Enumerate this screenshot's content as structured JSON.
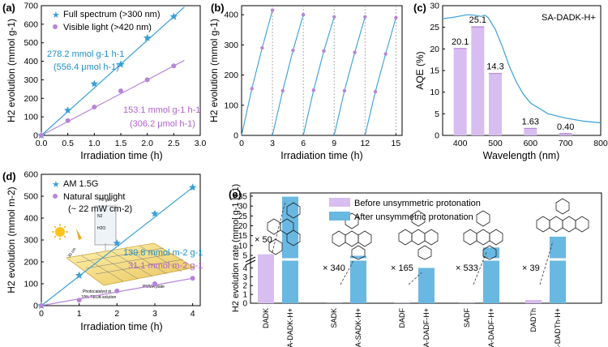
{
  "colors": {
    "blue": "#3a9fd6",
    "purple": "#b784d8",
    "lilac": "#d8bdf0",
    "barblue": "#69b8e2",
    "tick": "#000000"
  },
  "panels": {
    "a": {
      "label": "(a)"
    },
    "b": {
      "label": "(b)"
    },
    "c": {
      "label": "(c)"
    },
    "d": {
      "label": "(d)"
    },
    "e": {
      "label": "(e)"
    }
  },
  "chart_data": [
    {
      "panel": "a",
      "type": "scatter",
      "xlabel": "Irradiation time (h)",
      "ylabel": "H2 evolution (mmol g-1)",
      "xlim": [
        0,
        3.0
      ],
      "ylim": [
        0,
        700
      ],
      "xticks": [
        "0.0",
        "0.5",
        "1.0",
        "1.5",
        "2.0",
        "2.5",
        "3.0"
      ],
      "yticks": [
        "0",
        "100",
        "200",
        "300",
        "400",
        "500",
        "600",
        "700"
      ],
      "legend": "top-left",
      "series": [
        {
          "name": "Full spectrum (>300 nm)",
          "marker": "star",
          "x": [
            0,
            0.5,
            1.0,
            1.5,
            2.0,
            2.5
          ],
          "y": [
            0,
            135,
            278,
            383,
            526,
            641
          ]
        },
        {
          "name": "Visible light (>420 nm)",
          "marker": "circle",
          "x": [
            0,
            0.5,
            1.0,
            1.5,
            2.0,
            2.5
          ],
          "y": [
            0,
            80,
            153,
            240,
            300,
            375
          ]
        }
      ],
      "annotations": [
        {
          "text": "278.2 mmol g-1 h-1",
          "sub": "(556.4 μmol h-1)",
          "series": 0
        },
        {
          "text": "153.1 mmol g-1 h-1",
          "sub": "(306.2 μmol h-1)",
          "series": 1
        }
      ]
    },
    {
      "panel": "b",
      "type": "line",
      "xlabel": "Irradiation time (h)",
      "ylabel": "H2 evolution (mmol g-1)",
      "xlim": [
        0,
        15.6
      ],
      "ylim": [
        0,
        430
      ],
      "xticks": [
        "0",
        "3",
        "6",
        "9",
        "12",
        "15"
      ],
      "yticks": [
        "0",
        "100",
        "200",
        "300",
        "400"
      ],
      "cycles": [
        {
          "x": [
            0,
            1,
            2,
            3
          ],
          "y": [
            0,
            155,
            290,
            415
          ]
        },
        {
          "x": [
            3,
            4,
            5,
            6
          ],
          "y": [
            0,
            148,
            282,
            400
          ]
        },
        {
          "x": [
            6,
            7,
            8,
            9
          ],
          "y": [
            0,
            150,
            280,
            393
          ]
        },
        {
          "x": [
            9,
            10,
            11,
            12
          ],
          "y": [
            0,
            148,
            275,
            393
          ]
        },
        {
          "x": [
            12,
            13,
            14,
            15
          ],
          "y": [
            0,
            145,
            270,
            390
          ]
        }
      ]
    },
    {
      "panel": "c",
      "type": "bar",
      "xlabel": "Wavelength (nm)",
      "ylabel": "AQE (%)",
      "xlim": [
        350,
        800
      ],
      "ylim": [
        0,
        30
      ],
      "xticks": [
        "400",
        "500",
        "600",
        "700",
        "800"
      ],
      "yticks": [
        "0",
        "5",
        "10",
        "15",
        "20",
        "25",
        "30"
      ],
      "sample": "SA-DADK-H+",
      "bars": [
        {
          "x": 400,
          "value": 20.1,
          "label": "20.1"
        },
        {
          "x": 450,
          "value": 25.1,
          "label": "25.1"
        },
        {
          "x": 500,
          "value": 14.3,
          "label": "14.3"
        },
        {
          "x": 600,
          "value": 1.63,
          "label": "1.63"
        },
        {
          "x": 700,
          "value": 0.4,
          "label": "0.40"
        }
      ],
      "absorption_x": [
        350,
        380,
        400,
        420,
        440,
        460,
        470,
        480,
        500,
        520,
        540,
        560,
        580,
        600,
        650,
        700,
        750,
        800
      ],
      "absorption_y": [
        27.0,
        27.3,
        27.6,
        27.9,
        27.8,
        27.5,
        27.8,
        27.2,
        24.5,
        20.5,
        16.0,
        12.3,
        9.5,
        7.5,
        5.0,
        4.0,
        3.3,
        2.9
      ]
    },
    {
      "panel": "d",
      "type": "scatter",
      "xlabel": "Irradiation time (h)",
      "ylabel": "H2 evolution (mmol m-2)",
      "xlim": [
        0,
        4.2
      ],
      "ylim": [
        0,
        600
      ],
      "xticks": [
        "0",
        "1",
        "2",
        "3",
        "4"
      ],
      "yticks": [
        "0",
        "100",
        "200",
        "300",
        "400",
        "500",
        "600"
      ],
      "legend": "top-left",
      "series": [
        {
          "name": "AM 1.5G",
          "marker": "star",
          "x": [
            0,
            1,
            2,
            3,
            4
          ],
          "y": [
            0,
            138,
            285,
            420,
            540
          ]
        },
        {
          "name": "Natural sunlight",
          "sub": "(~ 22 mW cm-2)",
          "marker": "circle",
          "x": [
            0,
            1,
            2,
            3,
            4
          ],
          "y": [
            0,
            25,
            67,
            100,
            125
          ]
        }
      ],
      "annotations": [
        {
          "text": "139.8 mmol m-2 g-1",
          "series": 0
        },
        {
          "text": "31.1 mmol m-2 g-1",
          "series": 1
        }
      ],
      "inset": {
        "label1": "Photocatalyst in",
        "label2": "10% TEOA solution",
        "label3": "PMMA plate",
        "label4": "H2 gas",
        "label5": "N2",
        "label6": "H2O",
        "label7": "30 cm"
      }
    },
    {
      "panel": "e",
      "type": "bar",
      "xlabel": "",
      "ylabel": "H2 evolution rate (mmol g-1 h-1)",
      "yticks_lower": [
        "0",
        "1",
        "2",
        "3",
        "4"
      ],
      "yticks_upper": [
        "5",
        "10",
        "15",
        "20",
        "25",
        "30",
        "35"
      ],
      "legend": "top",
      "series_names": [
        "Before unsymmetric protonation",
        "After unsymmetric protonation"
      ],
      "pairs": [
        {
          "before": "DADK",
          "after": "SA-DADK-H+",
          "before_value": 5.56,
          "after_value": 278.2,
          "factor": "× 50"
        },
        {
          "before": "SADK",
          "after": "SA-SADK-H+",
          "before_value": 0.014,
          "after_value": 4.8,
          "factor": "× 340"
        },
        {
          "before": "DADF",
          "after": "SA-DADF-H+",
          "before_value": 0.024,
          "after_value": 4.0,
          "factor": "× 165"
        },
        {
          "before": "SADF",
          "after": "SA-DADF-H+",
          "before_value": 0.017,
          "after_value": 9.0,
          "factor": "× 533"
        },
        {
          "before": "DADTh",
          "after": "SA-DADTh-H+",
          "before_value": 0.37,
          "after_value": 14.5,
          "factor": "× 39"
        }
      ]
    }
  ]
}
